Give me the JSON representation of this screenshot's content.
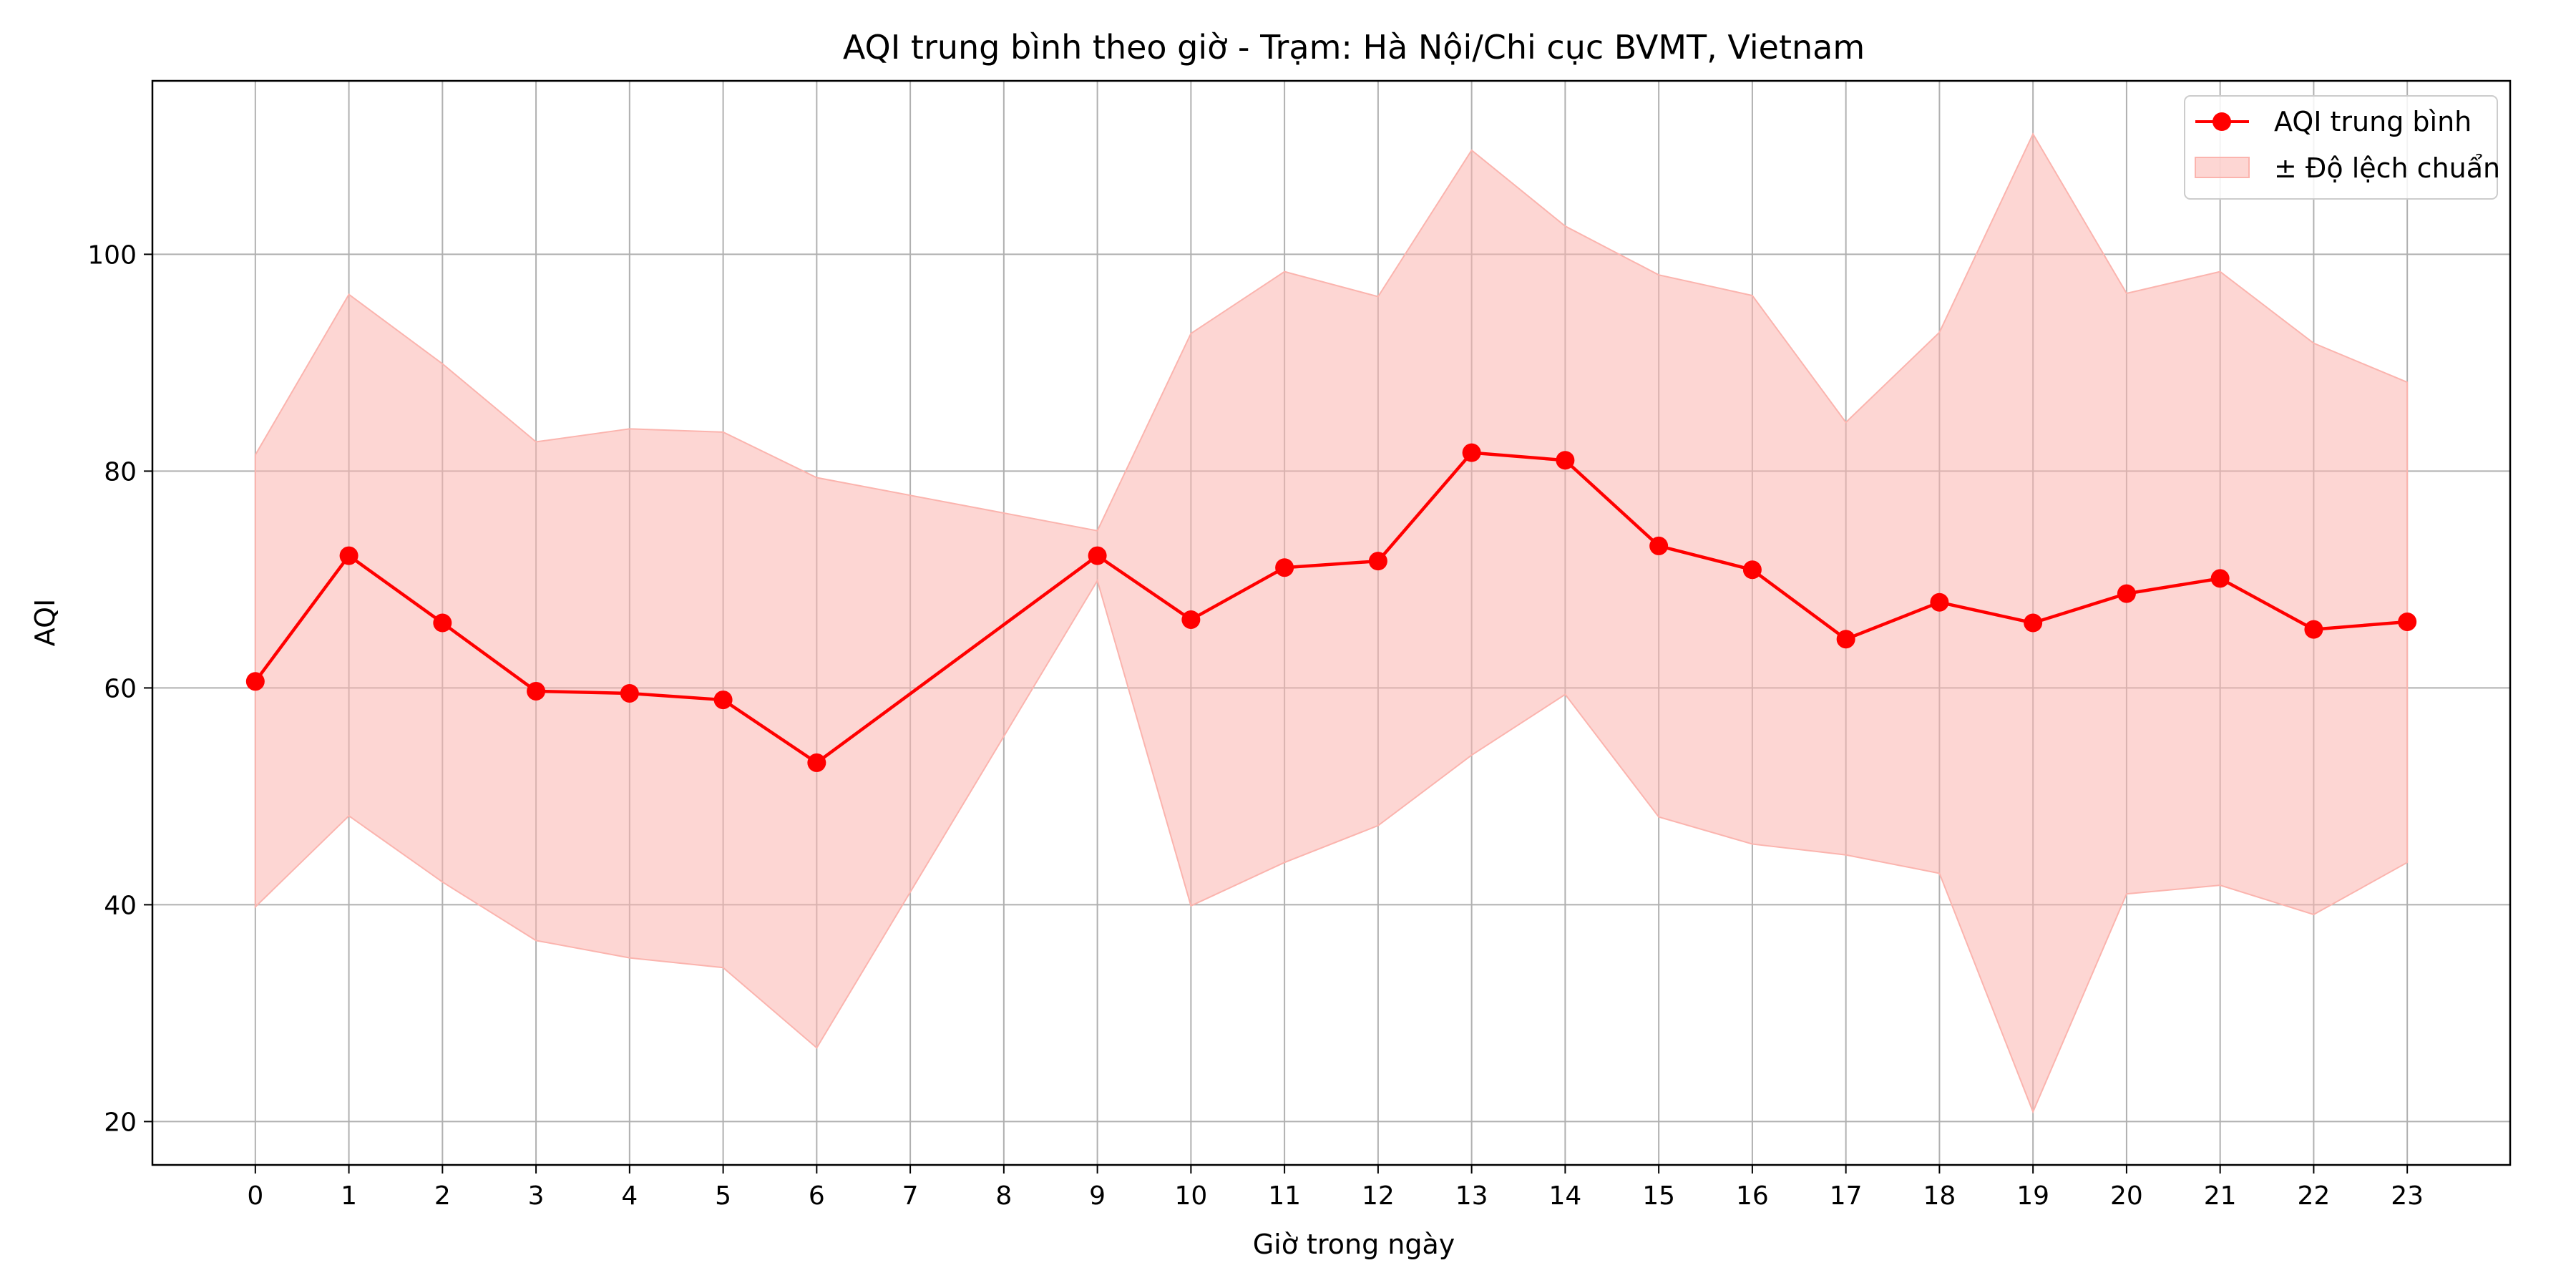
{
  "chart_data": {
    "type": "line",
    "title": "AQI trung bình theo giờ - Trạm: Hà Nội/Chi cục BVMT, Vietnam",
    "xlabel": "Giờ trong ngày",
    "ylabel": "AQI",
    "x": [
      0,
      1,
      2,
      3,
      4,
      5,
      6,
      9,
      10,
      11,
      12,
      13,
      14,
      15,
      16,
      17,
      18,
      19,
      20,
      21,
      22,
      23
    ],
    "xticks": [
      0,
      1,
      2,
      3,
      4,
      5,
      6,
      7,
      8,
      9,
      10,
      11,
      12,
      13,
      14,
      15,
      16,
      17,
      18,
      19,
      20,
      21,
      22,
      23
    ],
    "yticks": [
      20,
      40,
      60,
      80,
      100
    ],
    "xlim": [
      -1.1,
      24.1
    ],
    "ylim": [
      16,
      116
    ],
    "grid": true,
    "legend_position": "top-right",
    "series": [
      {
        "name": "AQI trung bình",
        "type": "line",
        "values": [
          60.6,
          72.2,
          66.0,
          59.7,
          59.5,
          58.9,
          53.1,
          72.2,
          66.3,
          71.1,
          71.7,
          81.7,
          81.0,
          73.1,
          70.9,
          64.5,
          67.9,
          66.0,
          68.7,
          70.1,
          65.4,
          66.1
        ],
        "color": "#ff0000"
      },
      {
        "name": "± Độ lệch chuẩn",
        "type": "band",
        "upper": [
          81.5,
          96.3,
          89.9,
          82.7,
          83.9,
          83.6,
          79.4,
          74.5,
          92.7,
          98.4,
          96.1,
          109.6,
          102.6,
          98.1,
          96.2,
          84.5,
          92.8,
          111.1,
          96.4,
          98.4,
          91.8,
          88.2
        ],
        "lower": [
          39.8,
          48.2,
          42.1,
          36.7,
          35.1,
          34.2,
          26.8,
          69.9,
          39.9,
          43.9,
          47.3,
          53.8,
          59.4,
          48.1,
          45.6,
          44.6,
          42.9,
          20.9,
          41.0,
          41.8,
          39.1,
          43.9
        ],
        "color": "#fbb4ae"
      }
    ]
  }
}
